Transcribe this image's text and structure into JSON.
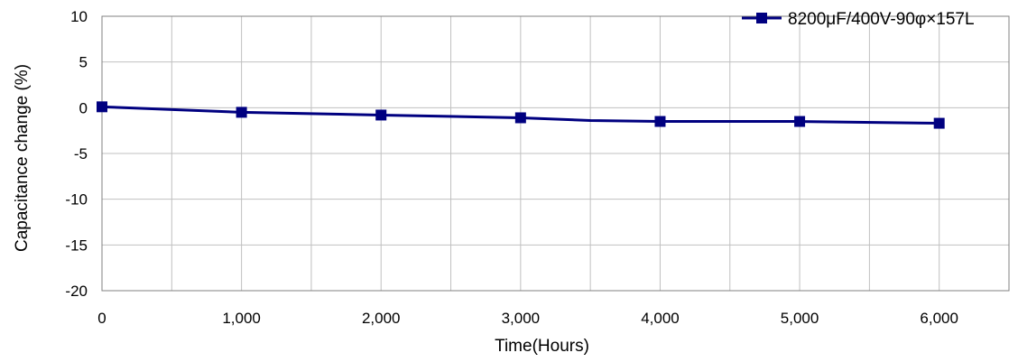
{
  "chart_data": {
    "type": "line",
    "xlabel": "Time(Hours)",
    "ylabel": "Capacitance change (%)",
    "x": [
      0,
      1000,
      2000,
      3000,
      4000,
      5000,
      6000
    ],
    "x_tick_labels": [
      "0",
      "1,000",
      "2,000",
      "3,000",
      "4,000",
      "5,000",
      "6,000"
    ],
    "xlim": [
      0,
      6500
    ],
    "ylim": [
      -20,
      10
    ],
    "y_ticks": [
      10,
      5,
      0,
      -5,
      -10,
      -15,
      -20
    ],
    "y_tick_labels": [
      "10",
      "5",
      "0",
      "-5",
      "-10",
      "-15",
      "-20"
    ],
    "grid": true,
    "legend_position": "top-right",
    "series": [
      {
        "name": "8200μF/400V-90φ×157L",
        "color": "#000080",
        "marker": "square",
        "x": [
          0,
          1000,
          2000,
          3000,
          4000,
          5000,
          6000
        ],
        "values": [
          0.1,
          -0.5,
          -0.8,
          -1.1,
          -1.5,
          -1.5,
          -1.7
        ],
        "line_x": [
          0,
          1000,
          2000,
          3000,
          3500,
          4000,
          5000,
          6000
        ],
        "line_values": [
          0.1,
          -0.5,
          -0.8,
          -1.1,
          -1.4,
          -1.5,
          -1.5,
          -1.7
        ]
      }
    ]
  }
}
